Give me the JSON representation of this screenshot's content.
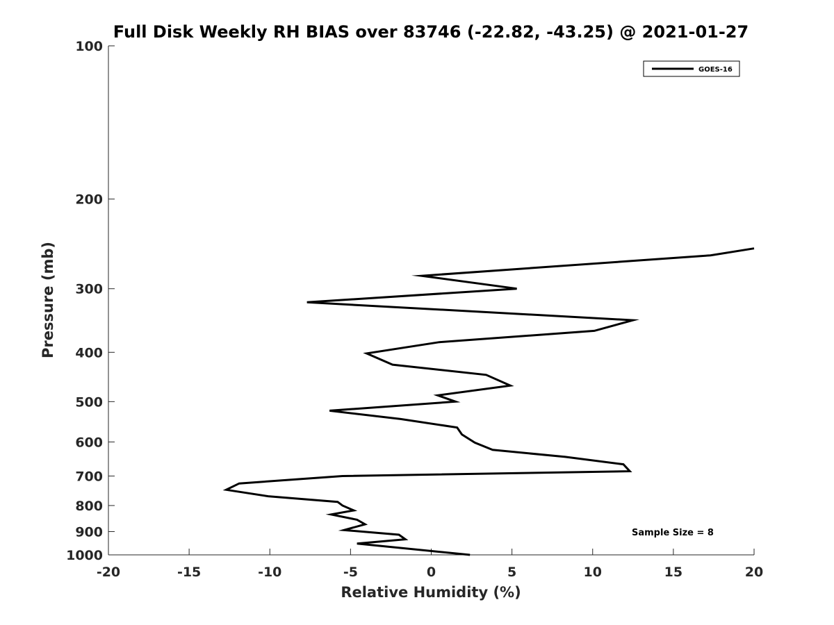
{
  "chart_data": {
    "type": "line",
    "title": "Full Disk Weekly RH BIAS over 83746 (-22.82, -43.25) @ 2021-01-27",
    "xlabel": "Relative Humidity (%)",
    "ylabel": "Pressure (mb)",
    "xlim": [
      -20,
      20
    ],
    "ylim": [
      100,
      1000
    ],
    "y_scale": "log",
    "y_reversed": true,
    "x_ticks": [
      -20,
      -15,
      -10,
      -5,
      0,
      5,
      10,
      15,
      20
    ],
    "y_ticks": [
      100,
      200,
      300,
      400,
      500,
      600,
      700,
      800,
      900,
      1000
    ],
    "grid": false,
    "legend_position": "top-right",
    "annotation": "Sample Size = 8",
    "series": [
      {
        "name": "GOES-16",
        "color": "#000000",
        "points": [
          {
            "x": 20.0,
            "y": 250
          },
          {
            "x": 17.3,
            "y": 258
          },
          {
            "x": -0.6,
            "y": 283
          },
          {
            "x": 5.3,
            "y": 300
          },
          {
            "x": -7.7,
            "y": 319
          },
          {
            "x": 12.5,
            "y": 346
          },
          {
            "x": 10.1,
            "y": 363
          },
          {
            "x": 0.5,
            "y": 382
          },
          {
            "x": -4.0,
            "y": 402
          },
          {
            "x": -2.4,
            "y": 423
          },
          {
            "x": 3.4,
            "y": 443
          },
          {
            "x": 4.9,
            "y": 465
          },
          {
            "x": 0.4,
            "y": 486
          },
          {
            "x": 1.5,
            "y": 500
          },
          {
            "x": -6.3,
            "y": 521
          },
          {
            "x": -1.9,
            "y": 541
          },
          {
            "x": 1.6,
            "y": 562
          },
          {
            "x": 1.9,
            "y": 580
          },
          {
            "x": 2.7,
            "y": 602
          },
          {
            "x": 3.8,
            "y": 622
          },
          {
            "x": 8.3,
            "y": 642
          },
          {
            "x": 11.9,
            "y": 664
          },
          {
            "x": 12.3,
            "y": 685
          },
          {
            "x": -5.5,
            "y": 700
          },
          {
            "x": -11.9,
            "y": 724
          },
          {
            "x": -12.7,
            "y": 745
          },
          {
            "x": -10.1,
            "y": 767
          },
          {
            "x": -5.8,
            "y": 787
          },
          {
            "x": -5.5,
            "y": 800
          },
          {
            "x": -4.8,
            "y": 818
          },
          {
            "x": -6.2,
            "y": 833
          },
          {
            "x": -4.6,
            "y": 853
          },
          {
            "x": -4.1,
            "y": 871
          },
          {
            "x": -5.4,
            "y": 894
          },
          {
            "x": -2.0,
            "y": 913
          },
          {
            "x": -1.6,
            "y": 932
          },
          {
            "x": -4.6,
            "y": 950
          },
          {
            "x": 2.4,
            "y": 1000
          }
        ]
      }
    ]
  }
}
